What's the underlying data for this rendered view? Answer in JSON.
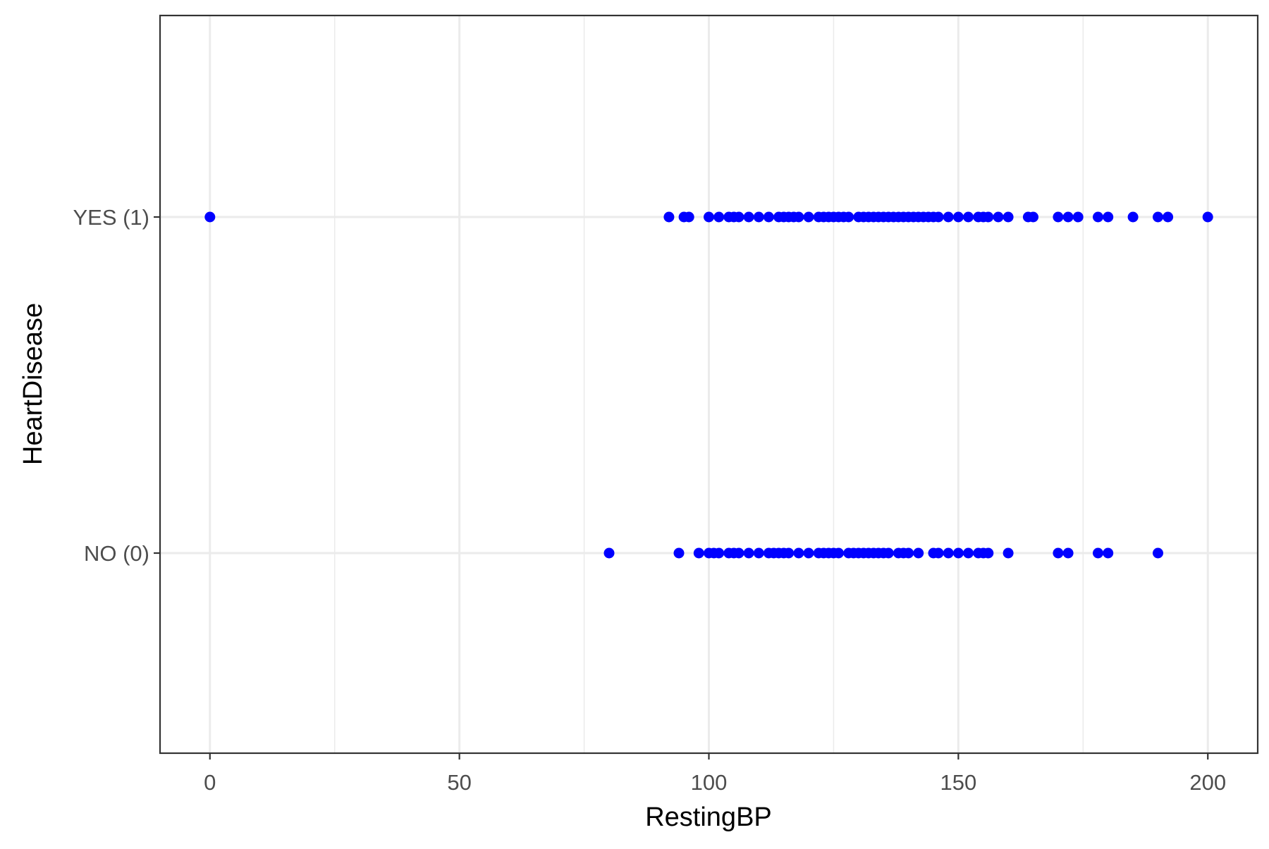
{
  "chart_data": {
    "type": "scatter",
    "title": "",
    "xlabel": "RestingBP",
    "ylabel": "HeartDisease",
    "xlim": [
      -10,
      210
    ],
    "x_ticks": [
      0,
      50,
      100,
      150,
      200
    ],
    "x_tick_labels": [
      "0",
      "50",
      "100",
      "150",
      "200"
    ],
    "x_minor_ticks": [
      25,
      75,
      125,
      175
    ],
    "categories": [
      "NO (0)",
      "YES (1)"
    ],
    "grid": true,
    "legend": "none",
    "point_color": "#0000ff",
    "series": [
      {
        "category": "YES (1)",
        "x": [
          0,
          92,
          95,
          96,
          100,
          102,
          104,
          105,
          106,
          108,
          110,
          112,
          114,
          115,
          116,
          117,
          118,
          120,
          122,
          123,
          124,
          125,
          126,
          127,
          128,
          130,
          131,
          132,
          133,
          134,
          135,
          136,
          137,
          138,
          139,
          140,
          141,
          142,
          143,
          144,
          145,
          146,
          148,
          150,
          152,
          154,
          155,
          156,
          158,
          160,
          164,
          165,
          170,
          172,
          174,
          178,
          180,
          185,
          190,
          192,
          200
        ]
      },
      {
        "category": "NO (0)",
        "x": [
          80,
          94,
          98,
          100,
          101,
          102,
          104,
          105,
          106,
          108,
          110,
          112,
          113,
          114,
          115,
          116,
          118,
          120,
          122,
          123,
          124,
          125,
          126,
          128,
          129,
          130,
          131,
          132,
          133,
          134,
          135,
          136,
          138,
          139,
          140,
          142,
          145,
          146,
          148,
          150,
          152,
          154,
          155,
          156,
          160,
          170,
          172,
          178,
          180,
          190
        ]
      }
    ]
  }
}
